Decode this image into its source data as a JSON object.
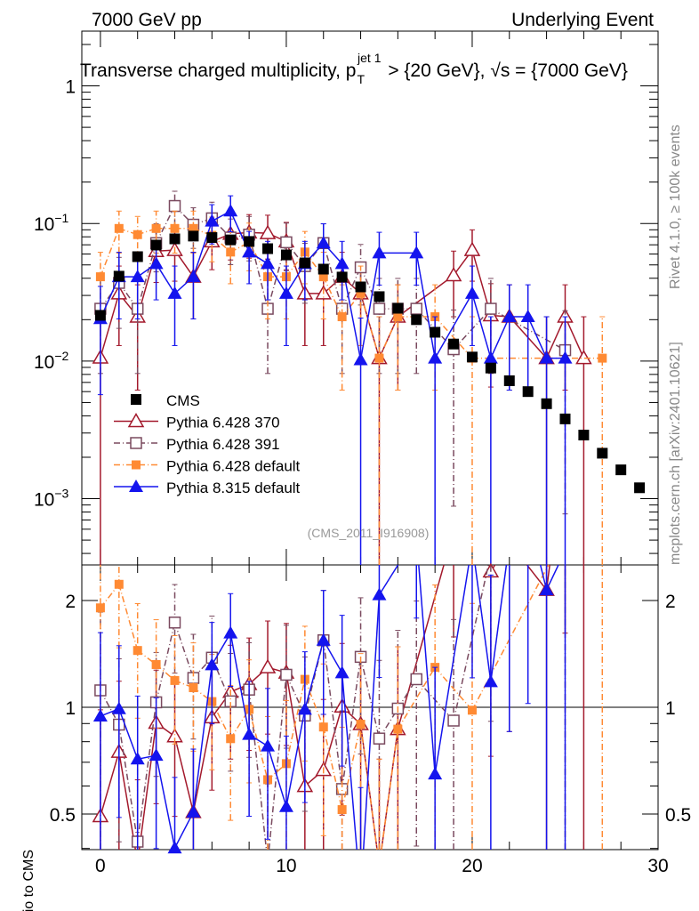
{
  "header": {
    "left": "7000 GeV pp",
    "right": "Underlying Event"
  },
  "side": {
    "rivet": "Rivet 4.1.0, ≥ 100k events",
    "mcplots": "mcplots.cern.ch [arXiv:2401.10621]"
  },
  "chart_data": {
    "type": "line",
    "title_main": "Transverse charged multiplicity, p",
    "title_sub": "T",
    "title_sup": "jet 1",
    "title_rest": " > {20 GeV}, √s = {7000 GeV}",
    "analysis_label": "(CMS_2011_I916908)",
    "ratio_ylabel": "Ratio to CMS",
    "xlim": [
      -1,
      30
    ],
    "ylim": [
      0.00033,
      2.5
    ],
    "yscale": "log",
    "ratio_ylim": [
      0.397,
      2.52
    ],
    "ratio_yscale": "log",
    "x_ticks": [
      "0",
      "10",
      "20",
      "30"
    ],
    "x_tick_values": [
      0,
      10,
      20,
      30
    ],
    "y_ticks": [
      {
        "v": 1,
        "base": "1",
        "exp": ""
      },
      {
        "v": 0.1,
        "base": "10",
        "exp": "−1"
      },
      {
        "v": 0.01,
        "base": "10",
        "exp": "−2"
      },
      {
        "v": 0.001,
        "base": "10",
        "exp": "−3"
      }
    ],
    "ratio_ticks": [
      {
        "v": 2,
        "label": "2"
      },
      {
        "v": 1,
        "label": "1"
      },
      {
        "v": 0.5,
        "label": "0.5"
      }
    ],
    "legend_position": "lower-left",
    "stat_unit": 0.0105,
    "x": [
      0,
      1,
      2,
      3,
      4,
      5,
      6,
      7,
      8,
      9,
      10,
      11,
      12,
      13,
      14,
      15,
      16,
      17,
      18,
      19,
      20,
      21,
      22,
      23,
      24,
      25,
      26,
      27,
      28,
      29
    ],
    "series": [
      {
        "name": "CMS",
        "color": "#000000",
        "marker": "square-filled",
        "line": "none",
        "values": [
          0.0215,
          0.0414,
          0.0574,
          0.0697,
          0.0773,
          0.081,
          0.079,
          0.076,
          0.074,
          0.0656,
          0.0591,
          0.0517,
          0.0466,
          0.0408,
          0.0346,
          0.0294,
          0.0242,
          0.02,
          0.0162,
          0.0133,
          0.0107,
          0.0089,
          0.0072,
          0.006,
          0.0049,
          0.0038,
          0.0029,
          0.00214,
          0.00162,
          0.0012
        ]
      },
      {
        "name": "Pythia 6.428 370",
        "color": "#a3192c",
        "marker": "triangle-open",
        "line": "solid",
        "values": [
          0.0106,
          0.031,
          0.021,
          0.063,
          0.064,
          0.041,
          0.074,
          0.084,
          0.086,
          0.085,
          0.074,
          0.031,
          0.031,
          0.041,
          0.031,
          0.0105,
          0.021,
          null,
          null,
          0.042,
          0.064,
          0.0215,
          0.021,
          null,
          0.0105,
          0.021,
          0.0105,
          null,
          null,
          null
        ]
      },
      {
        "name": "Pythia 6.428 391",
        "color": "#7a4a5f",
        "marker": "square-open",
        "line": "dashdot",
        "values": [
          0.024,
          0.037,
          0.024,
          0.072,
          0.134,
          0.098,
          0.109,
          0.079,
          0.083,
          0.024,
          0.073,
          0.049,
          0.072,
          0.024,
          0.048,
          0.024,
          0.024,
          0.024,
          null,
          0.0122,
          null,
          0.024,
          null,
          null,
          null,
          0.012,
          null,
          null,
          null,
          null
        ]
      },
      {
        "name": "Pythia 6.428 default",
        "color": "#ff8a33",
        "marker": "square-small",
        "line": "dashdot",
        "values": [
          0.041,
          0.092,
          0.083,
          0.092,
          0.092,
          0.092,
          0.082,
          0.062,
          0.073,
          0.041,
          0.041,
          0.062,
          0.041,
          0.021,
          0.031,
          0.0105,
          0.021,
          null,
          0.021,
          null,
          0.0105,
          null,
          null,
          null,
          null,
          null,
          null,
          0.0105,
          null,
          null
        ]
      },
      {
        "name": "Pythia 8.315 default",
        "color": "#1414ee",
        "marker": "triangle-filled",
        "line": "solid",
        "values": [
          0.0203,
          0.041,
          0.041,
          0.051,
          0.031,
          0.041,
          0.104,
          0.123,
          0.062,
          0.051,
          0.031,
          0.051,
          0.072,
          0.051,
          0.0102,
          0.061,
          null,
          0.061,
          0.0105,
          null,
          0.031,
          0.0105,
          0.021,
          0.021,
          0.0105,
          0.0105,
          null,
          null,
          null,
          null
        ]
      }
    ]
  }
}
